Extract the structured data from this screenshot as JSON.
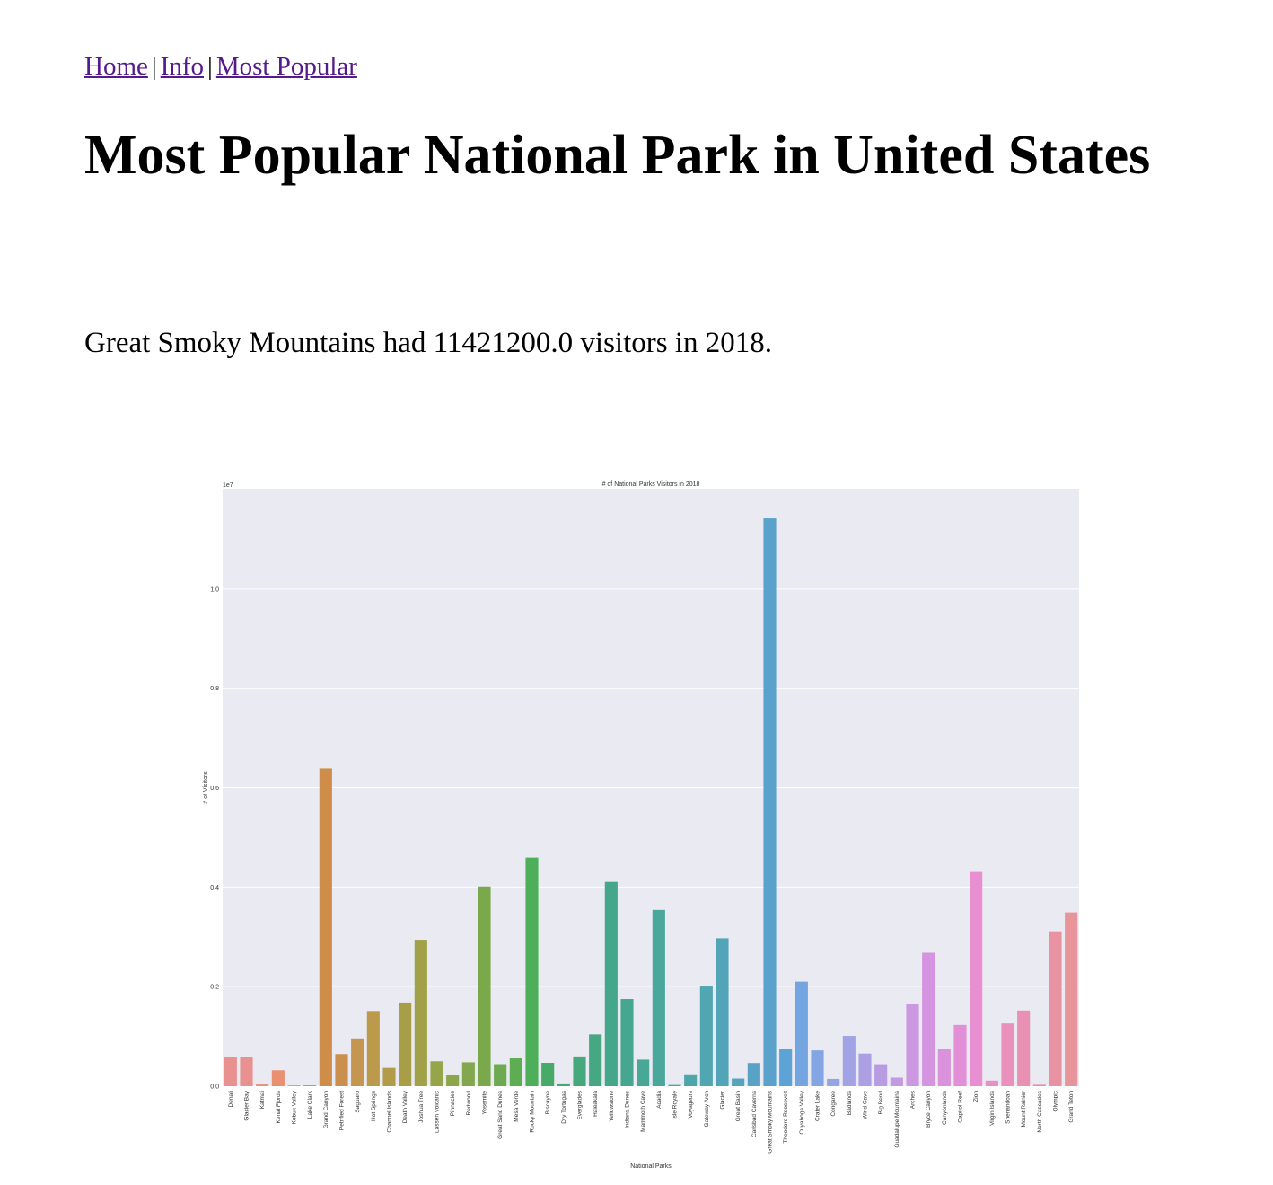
{
  "nav": {
    "home": "Home",
    "info": "Info",
    "most_popular": "Most Popular",
    "separator": "|"
  },
  "page_title": "Most Popular National Park in United States",
  "summary_text": "Great Smoky Mountains had 11421200.0 visitors in 2018.",
  "chart_data": {
    "type": "bar",
    "title": "# of National Parks Visitors in 2018",
    "xlabel": "National Parks",
    "ylabel": "# of Visitors",
    "y_offset_label": "1e7",
    "ylim": [
      0,
      12000000
    ],
    "yticks": [
      0,
      2000000,
      4000000,
      6000000,
      8000000,
      10000000
    ],
    "ytick_labels": [
      "0.0",
      "0.2",
      "0.4",
      "0.6",
      "0.8",
      "1.0"
    ],
    "background_color": "#eaeaf2",
    "grid": true,
    "categories": [
      "Denali",
      "Glacier Bay",
      "Katmai",
      "Kenai Fjords",
      "Kobuk Valley",
      "Lake Clark",
      "Grand Canyon",
      "Petrified Forest",
      "Saguaro",
      "Hot Springs",
      "Channel Islands",
      "Death Valley",
      "Joshua Tree",
      "Lassen Volcanic",
      "Pinnacles",
      "Redwood",
      "Yosemite",
      "Great Sand Dunes",
      "Mesa Verde",
      "Rocky Mountain",
      "Biscayne",
      "Dry Tortugas",
      "Everglades",
      "Haleakalā",
      "Yellowstone",
      "Indiana Dunes",
      "Mammoth Cave",
      "Acadia",
      "Isle Royale",
      "Voyageurs",
      "Gateway Arch",
      "Glacier",
      "Great Basin",
      "Carlsbad Caverns",
      "Great Smoky Mountains",
      "Theodore Roosevelt",
      "Cuyahoga Valley",
      "Crater Lake",
      "Congaree",
      "Badlands",
      "Wind Cave",
      "Big Bend",
      "Guadalupe Mountains",
      "Arches",
      "Bryce Canyon",
      "Canyonlands",
      "Capitol Reef",
      "Zion",
      "Virgin Islands",
      "Shenandoah",
      "Mount Rainier",
      "North Cascades",
      "Olympic",
      "Grand Teton"
    ],
    "values": [
      595000,
      595000,
      38000,
      320000,
      15000,
      18000,
      6380000,
      645000,
      960000,
      1510000,
      367000,
      1680000,
      2940000,
      500000,
      222000,
      480000,
      4010000,
      442000,
      564000,
      4590000,
      469000,
      56000,
      598000,
      1040000,
      4120000,
      1750000,
      534000,
      3540000,
      25000,
      239000,
      2020000,
      2970000,
      153000,
      466000,
      11421200,
      750000,
      2100000,
      720000,
      146000,
      1010000,
      655000,
      441000,
      172000,
      1660000,
      2680000,
      740000,
      1230000,
      4320000,
      112000,
      1260000,
      1520000,
      30000,
      3110000,
      3490000
    ],
    "colors": [
      "#e8918f",
      "#e8918f",
      "#e99185",
      "#e8906f",
      "#df9559",
      "#d89549",
      "#cf8d4a",
      "#cb904e",
      "#c49650",
      "#bb9a4c",
      "#b29c4a",
      "#a99e48",
      "#a0a148",
      "#96a44a",
      "#8ca64c",
      "#83a74f",
      "#7aa94c",
      "#6daa50",
      "#5fad53",
      "#4eaf5a",
      "#48aa69",
      "#47a974",
      "#46a97d",
      "#45a883",
      "#45a78a",
      "#46a790",
      "#48a796",
      "#4aa79c",
      "#4ca7a3",
      "#4ea6aa",
      "#50a6b1",
      "#52a4b8",
      "#55a3bf",
      "#58a3c5",
      "#5aa2cc",
      "#5ea3d6",
      "#73a6e0",
      "#84a5e4",
      "#94a5e6",
      "#a2a3e4",
      "#ada0e2",
      "#b89ce2",
      "#c29ae2",
      "#cc98e2",
      "#d494e0",
      "#da92dc",
      "#e28fd8",
      "#e78fd0",
      "#e88fc6",
      "#e990bc",
      "#e991b3",
      "#e991aa",
      "#e993a2",
      "#e8949b"
    ]
  }
}
